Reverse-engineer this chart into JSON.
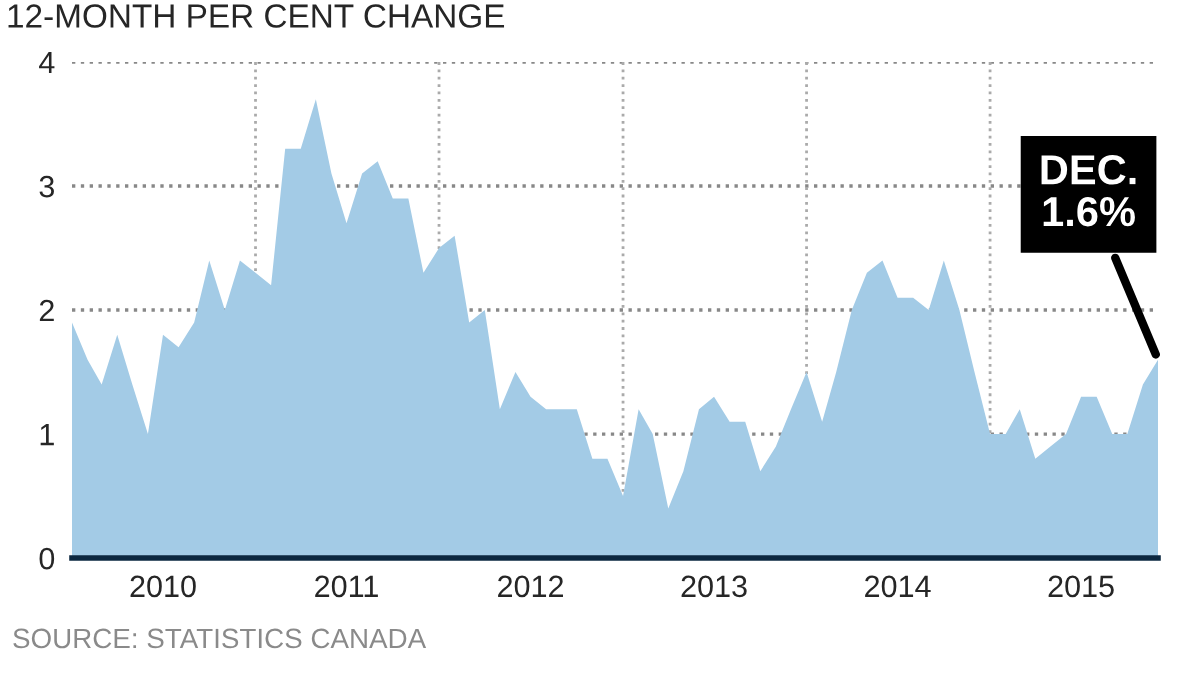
{
  "chart_data": {
    "type": "area",
    "title": "12-MONTH PER CENT CHANGE",
    "x": [
      "2010-01",
      "2010-02",
      "2010-03",
      "2010-04",
      "2010-05",
      "2010-06",
      "2010-07",
      "2010-08",
      "2010-09",
      "2010-10",
      "2010-11",
      "2010-12",
      "2011-01",
      "2011-02",
      "2011-03",
      "2011-04",
      "2011-05",
      "2011-06",
      "2011-07",
      "2011-08",
      "2011-09",
      "2011-10",
      "2011-11",
      "2011-12",
      "2012-01",
      "2012-02",
      "2012-03",
      "2012-04",
      "2012-05",
      "2012-06",
      "2012-07",
      "2012-08",
      "2012-09",
      "2012-10",
      "2012-11",
      "2012-12",
      "2013-01",
      "2013-02",
      "2013-03",
      "2013-04",
      "2013-05",
      "2013-06",
      "2013-07",
      "2013-08",
      "2013-09",
      "2013-10",
      "2013-11",
      "2013-12",
      "2014-01",
      "2014-02",
      "2014-03",
      "2014-04",
      "2014-05",
      "2014-06",
      "2014-07",
      "2014-08",
      "2014-09",
      "2014-10",
      "2014-11",
      "2014-12",
      "2015-01",
      "2015-02",
      "2015-03",
      "2015-04",
      "2015-05",
      "2015-06",
      "2015-07",
      "2015-08",
      "2015-09",
      "2015-10",
      "2015-11",
      "2015-12"
    ],
    "series": [
      {
        "color": "#a3cbe6",
        "values": [
          1.9,
          1.6,
          1.4,
          1.8,
          1.4,
          1.0,
          1.8,
          1.7,
          1.9,
          2.4,
          2.0,
          2.4,
          2.3,
          2.2,
          3.3,
          3.3,
          3.7,
          3.1,
          2.7,
          3.1,
          3.2,
          2.9,
          2.9,
          2.3,
          2.5,
          2.6,
          1.9,
          2.0,
          1.2,
          1.5,
          1.3,
          1.2,
          1.2,
          1.2,
          0.8,
          0.8,
          0.5,
          1.2,
          1.0,
          0.4,
          0.7,
          1.2,
          1.3,
          1.1,
          1.1,
          0.7,
          0.9,
          1.2,
          1.5,
          1.1,
          1.5,
          2.0,
          2.3,
          2.4,
          2.1,
          2.1,
          2.0,
          2.4,
          2.0,
          1.5,
          1.0,
          1.0,
          1.2,
          0.8,
          0.9,
          1.0,
          1.3,
          1.3,
          1.0,
          1.0,
          1.4,
          1.6
        ]
      }
    ],
    "xlim": [
      "2010-01",
      "2015-12"
    ],
    "xticks": [
      {
        "value": "2010-07",
        "label": "2010"
      },
      {
        "value": "2011-07",
        "label": "2011"
      },
      {
        "value": "2012-07",
        "label": "2012"
      },
      {
        "value": "2013-07",
        "label": "2013"
      },
      {
        "value": "2014-07",
        "label": "2014"
      },
      {
        "value": "2015-07",
        "label": "2015"
      }
    ],
    "ylim": [
      0,
      4
    ],
    "yticks": [
      0,
      1,
      2,
      3,
      4
    ],
    "grid": "y",
    "ref_lines": [
      {
        "axis": "x",
        "value": "2011-01",
        "color": "#aaaaaa",
        "line_style": "dotted"
      },
      {
        "axis": "x",
        "value": "2012-01",
        "color": "#aaaaaa",
        "line_style": "dotted"
      },
      {
        "axis": "x",
        "value": "2013-01",
        "color": "#aaaaaa",
        "line_style": "dotted"
      },
      {
        "axis": "x",
        "value": "2014-01",
        "color": "#aaaaaa",
        "line_style": "dotted"
      },
      {
        "axis": "x",
        "value": "2015-01",
        "color": "#aaaaaa",
        "line_style": "dotted"
      }
    ],
    "annotations": [
      {
        "text": "DEC.\n1.6%",
        "x": "2015-12",
        "y": 1.6
      },
      "SOURCE: STATISTICS CANADA"
    ]
  }
}
